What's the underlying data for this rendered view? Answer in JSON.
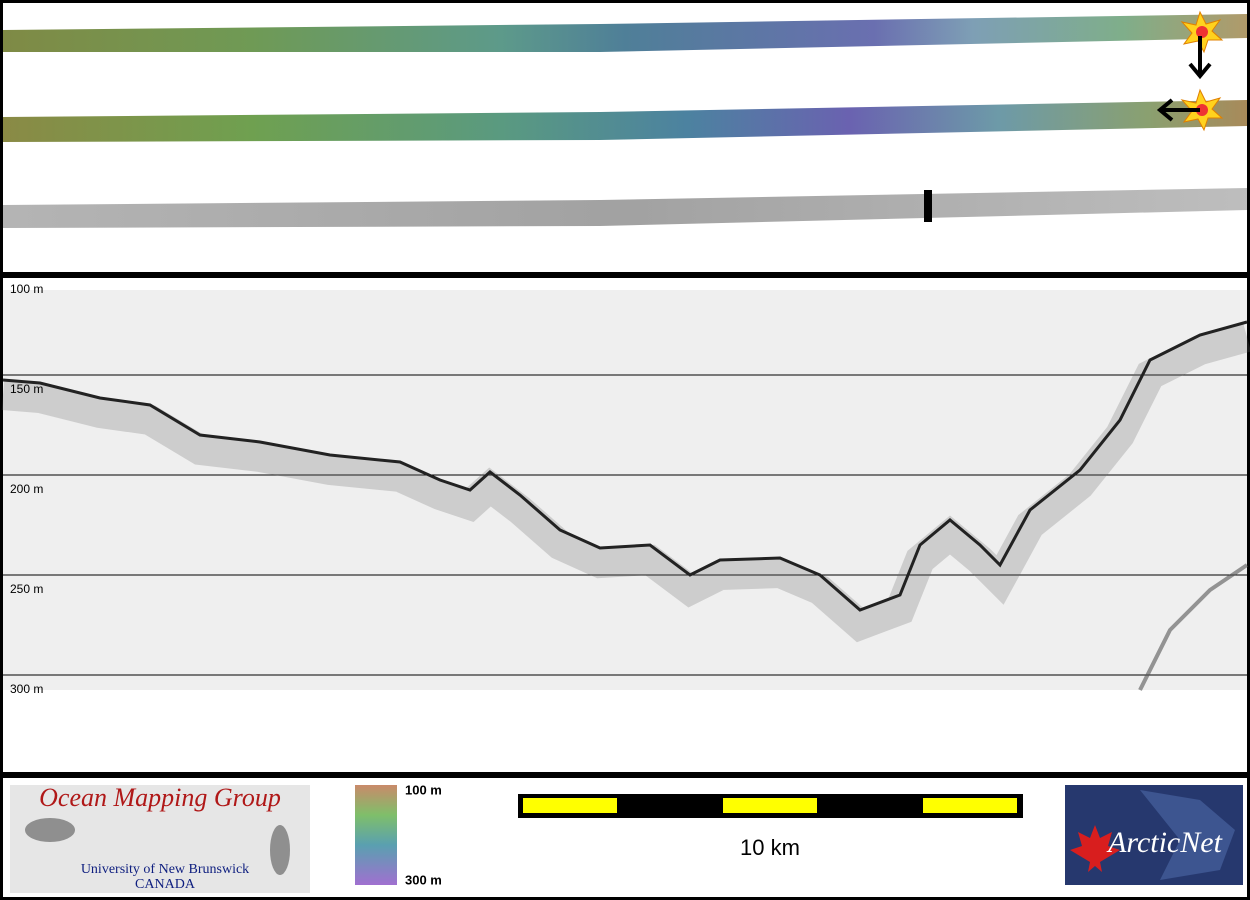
{
  "depth_profile": {
    "depth_labels": [
      "100 m",
      "150 m",
      "200 m",
      "250 m",
      "300 m"
    ]
  },
  "legend": {
    "colorbar_labels": [
      "100 m",
      "300 m"
    ],
    "scale_bar_label": "10 km"
  },
  "logos": {
    "ocean_mapping_group": {
      "title": "Ocean Mapping Group",
      "university": "University of New Brunswick",
      "country": "CANADA"
    },
    "arcticnet": "ArcticNet"
  }
}
